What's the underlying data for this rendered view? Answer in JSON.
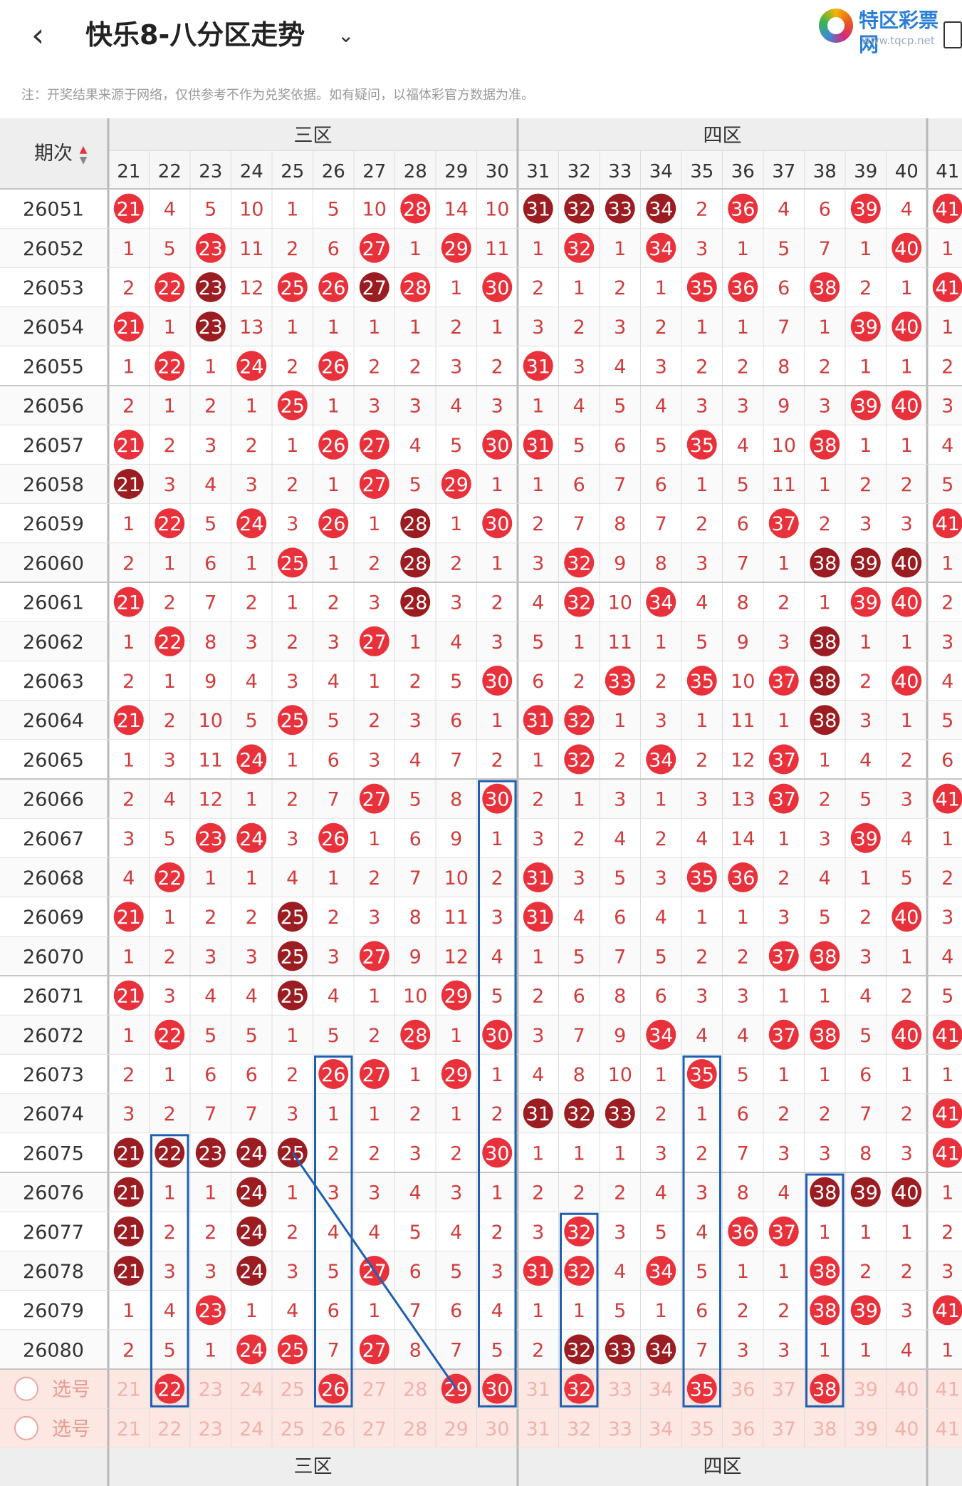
{
  "header": {
    "back_icon": "chevron-left-icon",
    "title": "快乐8-八分区走势",
    "dropdown_icon": "chevron-down-icon"
  },
  "logo": {
    "name": "特区彩票网",
    "url": "www.tqcp.net"
  },
  "note": "注：开奖结果来源于网络，仅供参考不作为兑奖依据。如有疑问，以福体彩官方数据为准。",
  "table": {
    "period_header": "期次",
    "zones": [
      "三区",
      "四区"
    ],
    "columns": [
      21,
      22,
      23,
      24,
      25,
      26,
      27,
      28,
      29,
      30,
      31,
      32,
      33,
      34,
      35,
      36,
      37,
      38,
      39,
      40,
      41
    ],
    "select_label": "选号",
    "colors": {
      "hit": "#e8313b",
      "repeat": "#9b1c21",
      "text": "#d23b3b",
      "selected": "#fde7e2"
    },
    "rows": [
      {
        "p": "26051",
        "v": [
          "H",
          4,
          5,
          10,
          1,
          5,
          10,
          "H",
          14,
          10,
          "D",
          "D",
          "D",
          "D",
          2,
          "H",
          4,
          6,
          "H",
          4,
          "H"
        ]
      },
      {
        "p": "26052",
        "v": [
          1,
          5,
          "H",
          11,
          2,
          6,
          "H",
          1,
          "H",
          11,
          1,
          "H",
          1,
          "H",
          3,
          1,
          5,
          7,
          1,
          "H",
          1
        ]
      },
      {
        "p": "26053",
        "v": [
          2,
          "H",
          "D",
          12,
          "H",
          "H",
          "D",
          "H",
          1,
          "H",
          2,
          1,
          2,
          1,
          "H",
          "H",
          6,
          "H",
          2,
          1,
          "H"
        ]
      },
      {
        "p": "26054",
        "v": [
          "H",
          1,
          "D",
          13,
          1,
          1,
          1,
          1,
          2,
          1,
          3,
          2,
          3,
          2,
          1,
          1,
          7,
          1,
          "H",
          "H",
          1
        ]
      },
      {
        "p": "26055",
        "v": [
          1,
          "H",
          1,
          "H",
          2,
          "H",
          2,
          2,
          3,
          2,
          "H",
          3,
          4,
          3,
          2,
          2,
          8,
          2,
          1,
          1,
          2
        ]
      },
      {
        "p": "26056",
        "v": [
          2,
          1,
          2,
          1,
          "H",
          1,
          3,
          3,
          4,
          3,
          1,
          4,
          5,
          4,
          3,
          3,
          9,
          3,
          "H",
          "H",
          3
        ]
      },
      {
        "p": "26057",
        "v": [
          "H",
          2,
          3,
          2,
          1,
          "H",
          "H",
          4,
          5,
          "H",
          "H",
          5,
          6,
          5,
          "H",
          4,
          10,
          "H",
          1,
          1,
          4
        ]
      },
      {
        "p": "26058",
        "v": [
          "D",
          3,
          4,
          3,
          2,
          1,
          "H",
          5,
          "H",
          1,
          1,
          6,
          7,
          6,
          1,
          5,
          11,
          1,
          2,
          2,
          5
        ]
      },
      {
        "p": "26059",
        "v": [
          1,
          "H",
          5,
          "H",
          3,
          "H",
          1,
          "D",
          1,
          "H",
          2,
          7,
          8,
          7,
          2,
          6,
          "H",
          2,
          3,
          3,
          "H"
        ]
      },
      {
        "p": "26060",
        "v": [
          2,
          1,
          6,
          1,
          "H",
          1,
          2,
          "D",
          2,
          1,
          3,
          "H",
          9,
          8,
          3,
          7,
          1,
          "D",
          "D",
          "D",
          1
        ]
      },
      {
        "p": "26061",
        "v": [
          "H",
          2,
          7,
          2,
          1,
          2,
          3,
          "D",
          3,
          2,
          4,
          "H",
          10,
          "H",
          4,
          8,
          2,
          1,
          "H",
          "H",
          2
        ]
      },
      {
        "p": "26062",
        "v": [
          1,
          "H",
          8,
          3,
          2,
          3,
          "H",
          1,
          4,
          3,
          5,
          1,
          11,
          1,
          5,
          9,
          3,
          "D",
          1,
          1,
          3
        ]
      },
      {
        "p": "26063",
        "v": [
          2,
          1,
          9,
          4,
          3,
          4,
          1,
          2,
          5,
          "H",
          6,
          2,
          "H",
          2,
          "H",
          10,
          "H",
          "D",
          2,
          "H",
          4
        ]
      },
      {
        "p": "26064",
        "v": [
          "H",
          2,
          10,
          5,
          "H",
          5,
          2,
          3,
          6,
          1,
          "H",
          "H",
          1,
          3,
          1,
          11,
          1,
          "D",
          3,
          1,
          5
        ]
      },
      {
        "p": "26065",
        "v": [
          1,
          3,
          11,
          "H",
          1,
          6,
          3,
          4,
          7,
          2,
          1,
          "H",
          2,
          "H",
          2,
          12,
          "H",
          1,
          4,
          2,
          6
        ]
      },
      {
        "p": "26066",
        "v": [
          2,
          4,
          12,
          1,
          2,
          7,
          "H",
          5,
          8,
          "H",
          2,
          1,
          3,
          1,
          3,
          13,
          "H",
          2,
          5,
          3,
          "H"
        ]
      },
      {
        "p": "26067",
        "v": [
          3,
          5,
          "H",
          "H",
          3,
          "H",
          1,
          6,
          9,
          1,
          3,
          2,
          4,
          2,
          4,
          14,
          1,
          3,
          "H",
          4,
          1
        ]
      },
      {
        "p": "26068",
        "v": [
          4,
          "H",
          1,
          1,
          4,
          1,
          2,
          7,
          10,
          2,
          "H",
          3,
          5,
          3,
          "H",
          "H",
          2,
          4,
          1,
          5,
          2
        ]
      },
      {
        "p": "26069",
        "v": [
          "H",
          1,
          2,
          2,
          "D",
          2,
          3,
          8,
          11,
          3,
          "H",
          4,
          6,
          4,
          1,
          1,
          3,
          5,
          2,
          "H",
          3
        ]
      },
      {
        "p": "26070",
        "v": [
          1,
          2,
          3,
          3,
          "D",
          3,
          "H",
          9,
          12,
          4,
          1,
          5,
          7,
          5,
          2,
          2,
          "H",
          "H",
          3,
          1,
          4
        ]
      },
      {
        "p": "26071",
        "v": [
          "H",
          3,
          4,
          4,
          "D",
          4,
          1,
          10,
          "H",
          5,
          2,
          6,
          8,
          6,
          3,
          3,
          1,
          1,
          4,
          2,
          5
        ]
      },
      {
        "p": "26072",
        "v": [
          1,
          "H",
          5,
          5,
          1,
          5,
          2,
          "H",
          1,
          "H",
          3,
          7,
          9,
          "H",
          4,
          4,
          "H",
          "H",
          5,
          "H",
          "H"
        ]
      },
      {
        "p": "26073",
        "v": [
          2,
          1,
          6,
          6,
          2,
          "H",
          "H",
          1,
          "H",
          1,
          4,
          8,
          10,
          1,
          "H",
          5,
          1,
          1,
          6,
          1,
          1
        ]
      },
      {
        "p": "26074",
        "v": [
          3,
          2,
          7,
          7,
          3,
          1,
          1,
          2,
          1,
          2,
          "D",
          "D",
          "D",
          2,
          1,
          6,
          2,
          2,
          7,
          2,
          "H"
        ]
      },
      {
        "p": "26075",
        "v": [
          "D",
          "D",
          "D",
          "D",
          "D",
          2,
          2,
          3,
          2,
          "H",
          1,
          1,
          1,
          3,
          2,
          7,
          3,
          3,
          8,
          3,
          "H"
        ]
      },
      {
        "p": "26076",
        "v": [
          "D",
          1,
          1,
          "D",
          1,
          3,
          3,
          4,
          3,
          1,
          2,
          2,
          2,
          4,
          3,
          8,
          4,
          "D",
          "D",
          "D",
          1
        ]
      },
      {
        "p": "26077",
        "v": [
          "D",
          2,
          2,
          "D",
          2,
          4,
          4,
          5,
          4,
          2,
          3,
          "H",
          3,
          5,
          4,
          "H",
          "H",
          1,
          1,
          1,
          2
        ]
      },
      {
        "p": "26078",
        "v": [
          "D",
          3,
          3,
          "D",
          3,
          5,
          "H",
          6,
          5,
          3,
          "H",
          "H",
          4,
          "H",
          5,
          1,
          1,
          "H",
          2,
          2,
          3
        ]
      },
      {
        "p": "26079",
        "v": [
          1,
          4,
          "H",
          1,
          4,
          6,
          1,
          7,
          6,
          4,
          1,
          1,
          5,
          1,
          6,
          2,
          2,
          "H",
          "H",
          3,
          "H"
        ]
      },
      {
        "p": "26080",
        "v": [
          2,
          5,
          1,
          "H",
          "H",
          7,
          "H",
          8,
          7,
          5,
          2,
          "D",
          "D",
          "D",
          7,
          3,
          3,
          1,
          1,
          4,
          1
        ]
      }
    ],
    "selection_row_1": [
      22,
      26,
      29,
      30,
      32,
      35,
      38
    ]
  }
}
